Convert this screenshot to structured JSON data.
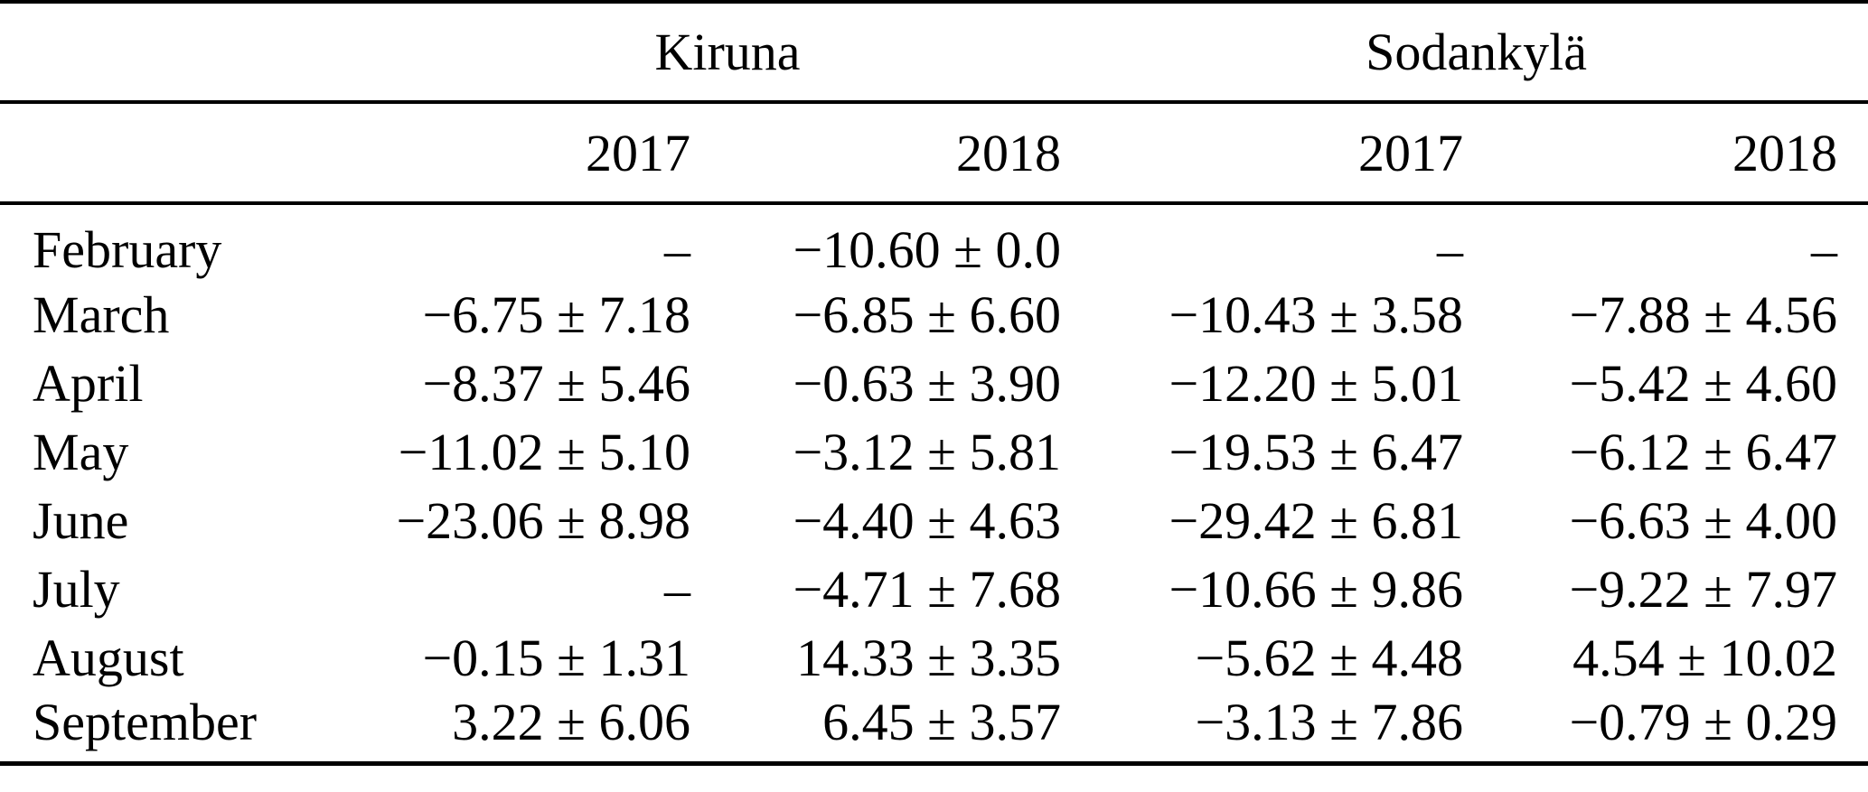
{
  "colors": {
    "text": "#000000",
    "background": "#ffffff",
    "rule": "#000000"
  },
  "table": {
    "group_headers": {
      "kiruna": "Kiruna",
      "sodankyla": "Sodankylä"
    },
    "year_headers": {
      "kiruna_2017": "2017",
      "kiruna_2018": "2018",
      "sodankyla_2017": "2017",
      "sodankyla_2018": "2018"
    },
    "missing_value_symbol": "–",
    "rows": [
      {
        "month": "February",
        "kiruna_2017": "–",
        "kiruna_2018": "−10.60 ± 0.0",
        "sodankyla_2017": "–",
        "sodankyla_2018": "–"
      },
      {
        "month": "March",
        "kiruna_2017": "−6.75 ± 7.18",
        "kiruna_2018": "−6.85 ± 6.60",
        "sodankyla_2017": "−10.43 ± 3.58",
        "sodankyla_2018": "−7.88 ± 4.56"
      },
      {
        "month": "April",
        "kiruna_2017": "−8.37 ± 5.46",
        "kiruna_2018": "−0.63 ± 3.90",
        "sodankyla_2017": "−12.20 ± 5.01",
        "sodankyla_2018": "−5.42 ± 4.60"
      },
      {
        "month": "May",
        "kiruna_2017": "−11.02 ± 5.10",
        "kiruna_2018": "−3.12 ± 5.81",
        "sodankyla_2017": "−19.53 ± 6.47",
        "sodankyla_2018": "−6.12 ± 6.47"
      },
      {
        "month": "June",
        "kiruna_2017": "−23.06 ± 8.98",
        "kiruna_2018": "−4.40 ± 4.63",
        "sodankyla_2017": "−29.42 ± 6.81",
        "sodankyla_2018": "−6.63 ± 4.00"
      },
      {
        "month": "July",
        "kiruna_2017": "–",
        "kiruna_2018": "−4.71 ± 7.68",
        "sodankyla_2017": "−10.66 ± 9.86",
        "sodankyla_2018": "−9.22 ± 7.97"
      },
      {
        "month": "August",
        "kiruna_2017": "−0.15 ± 1.31",
        "kiruna_2018": "14.33 ± 3.35",
        "sodankyla_2017": "−5.62 ± 4.48",
        "sodankyla_2018": "4.54 ± 10.02"
      },
      {
        "month": "September",
        "kiruna_2017": "3.22 ± 6.06",
        "kiruna_2018": "6.45 ± 3.57",
        "sodankyla_2017": "−3.13 ± 7.86",
        "sodankyla_2018": "−0.79 ± 0.29"
      }
    ]
  },
  "chart_data": {
    "type": "table",
    "columns": [
      "Month",
      "Kiruna 2017",
      "Kiruna 2018",
      "Sodankylä 2017",
      "Sodankylä 2018"
    ],
    "rows": [
      [
        "February",
        null,
        {
          "value": -10.6,
          "uncertainty": 0.0
        },
        null,
        null
      ],
      [
        "March",
        {
          "value": -6.75,
          "uncertainty": 7.18
        },
        {
          "value": -6.85,
          "uncertainty": 6.6
        },
        {
          "value": -10.43,
          "uncertainty": 3.58
        },
        {
          "value": -7.88,
          "uncertainty": 4.56
        }
      ],
      [
        "April",
        {
          "value": -8.37,
          "uncertainty": 5.46
        },
        {
          "value": -0.63,
          "uncertainty": 3.9
        },
        {
          "value": -12.2,
          "uncertainty": 5.01
        },
        {
          "value": -5.42,
          "uncertainty": 4.6
        }
      ],
      [
        "May",
        {
          "value": -11.02,
          "uncertainty": 5.1
        },
        {
          "value": -3.12,
          "uncertainty": 5.81
        },
        {
          "value": -19.53,
          "uncertainty": 6.47
        },
        {
          "value": -6.12,
          "uncertainty": 6.47
        }
      ],
      [
        "June",
        {
          "value": -23.06,
          "uncertainty": 8.98
        },
        {
          "value": -4.4,
          "uncertainty": 4.63
        },
        {
          "value": -29.42,
          "uncertainty": 6.81
        },
        {
          "value": -6.63,
          "uncertainty": 4.0
        }
      ],
      [
        "July",
        null,
        {
          "value": -4.71,
          "uncertainty": 7.68
        },
        {
          "value": -10.66,
          "uncertainty": 9.86
        },
        {
          "value": -9.22,
          "uncertainty": 7.97
        }
      ],
      [
        "August",
        {
          "value": -0.15,
          "uncertainty": 1.31
        },
        {
          "value": 14.33,
          "uncertainty": 3.35
        },
        {
          "value": -5.62,
          "uncertainty": 4.48
        },
        {
          "value": 4.54,
          "uncertainty": 10.02
        }
      ],
      [
        "September",
        {
          "value": 3.22,
          "uncertainty": 6.06
        },
        {
          "value": 6.45,
          "uncertainty": 3.57
        },
        {
          "value": -3.13,
          "uncertainty": 7.86
        },
        {
          "value": -0.79,
          "uncertainty": 0.29
        }
      ]
    ]
  }
}
